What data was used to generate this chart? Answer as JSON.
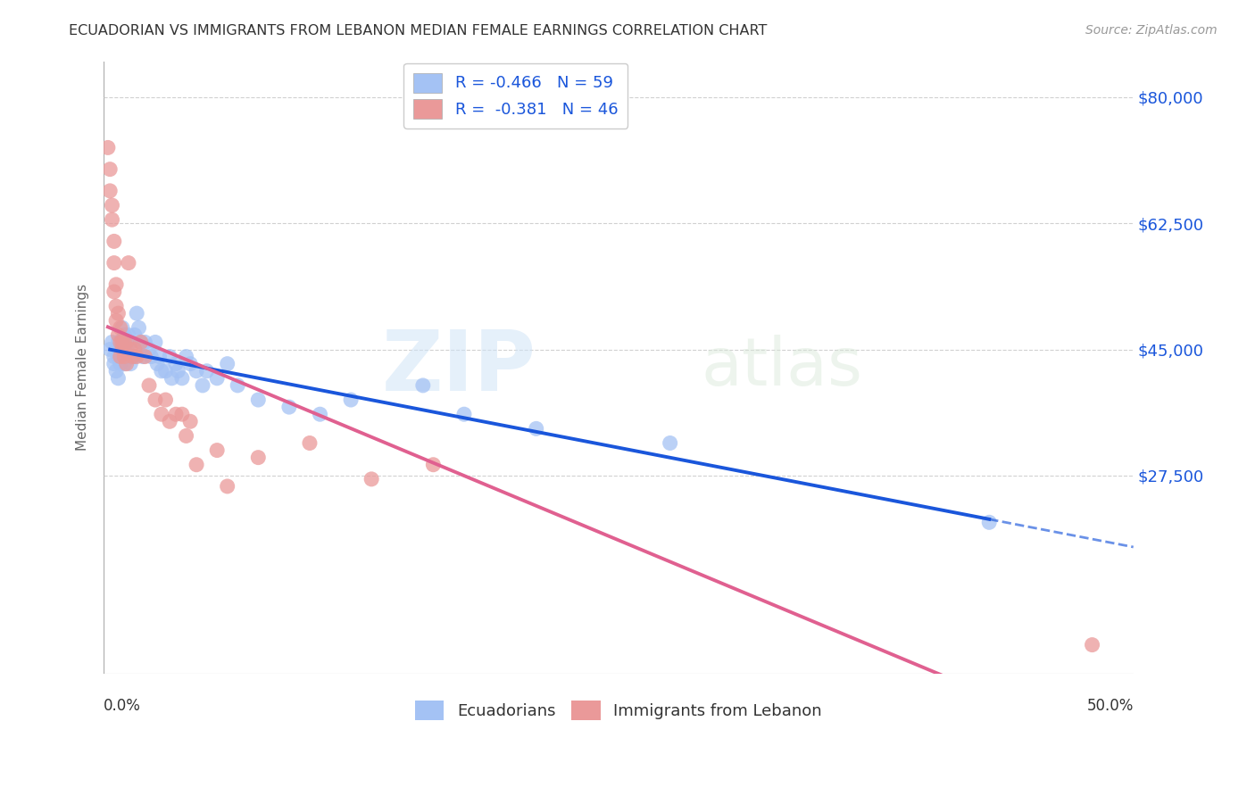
{
  "title": "ECUADORIAN VS IMMIGRANTS FROM LEBANON MEDIAN FEMALE EARNINGS CORRELATION CHART",
  "source": "Source: ZipAtlas.com",
  "ylabel": "Median Female Earnings",
  "ymin": 0,
  "ymax": 85000,
  "xmin": 0.0,
  "xmax": 0.5,
  "yticks": [
    27500,
    45000,
    62500,
    80000
  ],
  "ytick_labels": [
    "$27,500",
    "$45,000",
    "$62,500",
    "$80,000"
  ],
  "blue_color": "#a4c2f4",
  "pink_color": "#ea9999",
  "blue_line_color": "#1a56db",
  "pink_line_color": "#e06090",
  "blue_scatter": {
    "x": [
      0.003,
      0.004,
      0.005,
      0.005,
      0.006,
      0.006,
      0.007,
      0.007,
      0.007,
      0.008,
      0.008,
      0.009,
      0.009,
      0.01,
      0.01,
      0.01,
      0.011,
      0.011,
      0.012,
      0.012,
      0.013,
      0.013,
      0.014,
      0.015,
      0.015,
      0.016,
      0.017,
      0.018,
      0.019,
      0.02,
      0.022,
      0.023,
      0.025,
      0.026,
      0.027,
      0.028,
      0.03,
      0.032,
      0.033,
      0.035,
      0.036,
      0.038,
      0.04,
      0.042,
      0.045,
      0.048,
      0.05,
      0.055,
      0.06,
      0.065,
      0.075,
      0.09,
      0.105,
      0.12,
      0.155,
      0.175,
      0.21,
      0.275,
      0.43
    ],
    "y": [
      45000,
      46000,
      44000,
      43000,
      45000,
      42000,
      46000,
      44000,
      41000,
      45000,
      43000,
      48000,
      44000,
      47000,
      45000,
      43000,
      46000,
      44000,
      47000,
      44000,
      46000,
      43000,
      44000,
      47000,
      44000,
      50000,
      48000,
      46000,
      44000,
      46000,
      45000,
      44000,
      46000,
      43000,
      44000,
      42000,
      42000,
      44000,
      41000,
      43000,
      42000,
      41000,
      44000,
      43000,
      42000,
      40000,
      42000,
      41000,
      43000,
      40000,
      38000,
      37000,
      36000,
      38000,
      40000,
      36000,
      34000,
      32000,
      21000
    ]
  },
  "pink_scatter": {
    "x": [
      0.002,
      0.003,
      0.003,
      0.004,
      0.004,
      0.005,
      0.005,
      0.005,
      0.006,
      0.006,
      0.006,
      0.007,
      0.007,
      0.008,
      0.008,
      0.008,
      0.009,
      0.009,
      0.01,
      0.01,
      0.011,
      0.011,
      0.012,
      0.013,
      0.014,
      0.015,
      0.016,
      0.018,
      0.02,
      0.022,
      0.025,
      0.028,
      0.03,
      0.032,
      0.035,
      0.038,
      0.04,
      0.042,
      0.045,
      0.055,
      0.06,
      0.075,
      0.1,
      0.13,
      0.16,
      0.48
    ],
    "y": [
      73000,
      70000,
      67000,
      65000,
      63000,
      60000,
      57000,
      53000,
      54000,
      51000,
      49000,
      50000,
      47000,
      48000,
      46000,
      44000,
      46000,
      45000,
      46000,
      44000,
      46000,
      43000,
      57000,
      45000,
      44000,
      45000,
      44000,
      46000,
      44000,
      40000,
      38000,
      36000,
      38000,
      35000,
      36000,
      36000,
      33000,
      35000,
      29000,
      31000,
      26000,
      30000,
      32000,
      27000,
      29000,
      4000
    ]
  },
  "R_blue": "-0.466",
  "N_blue": "59",
  "R_pink": "-0.381",
  "N_pink": "46",
  "watermark_zip": "ZIP",
  "watermark_atlas": "atlas",
  "background_color": "#ffffff",
  "grid_color": "#cccccc",
  "blue_trendline_start_x": 0.003,
  "blue_trendline_solid_end_x": 0.43,
  "blue_trendline_dashed_end_x": 0.5,
  "pink_trendline_start_x": 0.002,
  "pink_trendline_end_x": 0.48
}
